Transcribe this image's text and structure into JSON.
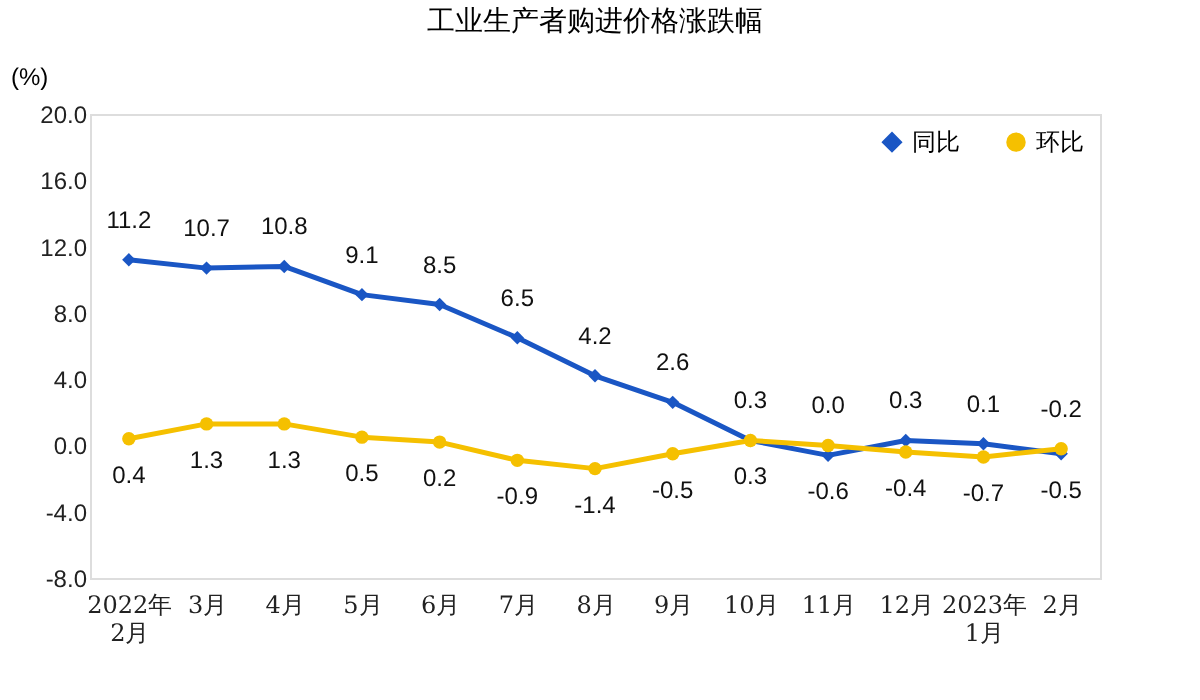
{
  "chart_data": {
    "type": "line",
    "title": "工业生产者购进价格涨跌幅",
    "ylabel": "(%)",
    "categories": [
      "2022年\n2月",
      "3月",
      "4月",
      "5月",
      "6月",
      "7月",
      "8月",
      "9月",
      "10月",
      "11月",
      "12月",
      "2023年\n1月",
      "2月"
    ],
    "series": [
      {
        "name": "同比",
        "color": "#1a56c4",
        "marker": "diamond",
        "values": [
          11.2,
          10.7,
          10.8,
          9.1,
          8.5,
          6.5,
          4.2,
          2.6,
          0.3,
          -0.6,
          0.3,
          0.1,
          -0.5
        ],
        "value_labels": [
          "11.2",
          "10.7",
          "10.8",
          "9.1",
          "8.5",
          "6.5",
          "4.2",
          "2.6",
          "0.3",
          "-0.6",
          "0.3",
          "0.1",
          "-0.5"
        ]
      },
      {
        "name": "环比",
        "color": "#f5c000",
        "marker": "circle",
        "values": [
          0.4,
          1.3,
          1.3,
          0.5,
          0.2,
          -0.9,
          -1.4,
          -0.5,
          0.3,
          0.0,
          -0.4,
          -0.7,
          -0.2
        ],
        "value_labels": [
          "0.4",
          "1.3",
          "1.3",
          "0.5",
          "0.2",
          "-0.9",
          "-1.4",
          "-0.5",
          "0.3",
          "0.0",
          "-0.4",
          "-0.7",
          "-0.2"
        ]
      }
    ],
    "ylim": [
      -8,
      20
    ],
    "yticks": [
      {
        "value": -8,
        "label": "-8.0"
      },
      {
        "value": -4,
        "label": "-4.0"
      },
      {
        "value": 0,
        "label": "0.0"
      },
      {
        "value": 4,
        "label": "4.0"
      },
      {
        "value": 8,
        "label": "8.0"
      },
      {
        "value": 12,
        "label": "12.0"
      },
      {
        "value": 16,
        "label": "16.0"
      },
      {
        "value": 20,
        "label": "20.0"
      }
    ],
    "legend": "top right",
    "grid": false,
    "line_style": "solid"
  }
}
